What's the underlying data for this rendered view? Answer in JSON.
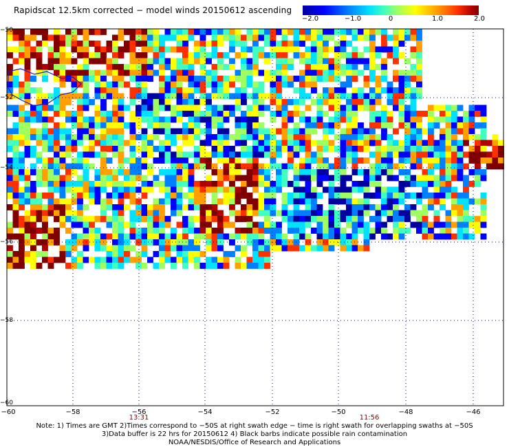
{
  "title": "Rapidscat 12.5km corrected − model winds 20150612 ascending",
  "colorbar": {
    "ticks": [
      "−2.0",
      "−1.0",
      "0",
      "1.0",
      "2.0"
    ],
    "colors": [
      "#0000a0",
      "#0000ff",
      "#0080ff",
      "#00e0ff",
      "#40ffc0",
      "#a0ff60",
      "#ffff00",
      "#ffa000",
      "#ff3000",
      "#b00000",
      "#800000"
    ]
  },
  "axes": {
    "lat_ticks": [
      "−50",
      "−52",
      "−54",
      "−56",
      "−58",
      "−60"
    ],
    "lon_ticks": [
      "−60",
      "−58",
      "−56",
      "−54",
      "−52",
      "−50",
      "−48",
      "−46"
    ]
  },
  "times": [
    "13:31",
    "11:56"
  ],
  "notes": [
    "Note: 1) Times are GMT 2)Times correspond to −50S at right swath edge − time is right swath for overlapping swaths at −50S",
    "3)Data buffer is 22 hrs for 20150612 4) Black barbs indicate possible rain contamination",
    "NOAA/NESDIS/Office of Research and Applications"
  ]
}
